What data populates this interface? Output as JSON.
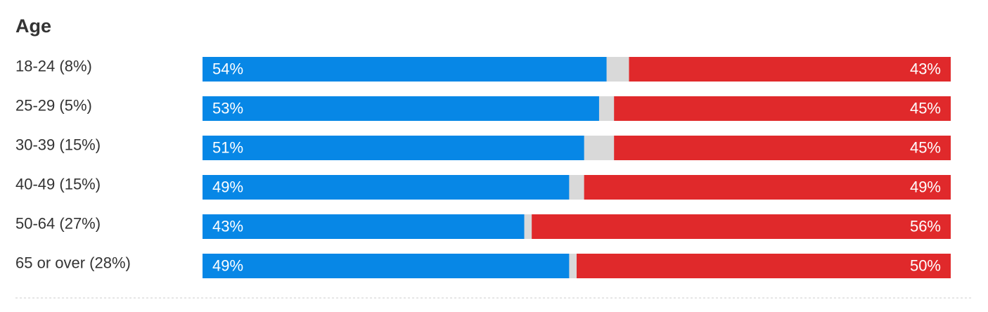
{
  "chart_data": {
    "type": "bar",
    "title": "Age",
    "categories": [
      "18-24 (8%)",
      "25-29 (5%)",
      "30-39 (15%)",
      "40-49 (15%)",
      "50-64 (27%)",
      "65 or over (28%)"
    ],
    "xlim": [
      0,
      100
    ],
    "series": [
      {
        "color": "#0787e6",
        "values": [
          54,
          53,
          51,
          49,
          43,
          49
        ],
        "value_labels": [
          "54%",
          "53%",
          "51%",
          "49%",
          "43%",
          "49%"
        ]
      },
      {
        "color": "#e0292b",
        "values": [
          43,
          45,
          45,
          49,
          56,
          50
        ],
        "value_labels": [
          "43%",
          "45%",
          "45%",
          "49%",
          "56%",
          "50%"
        ]
      }
    ]
  }
}
